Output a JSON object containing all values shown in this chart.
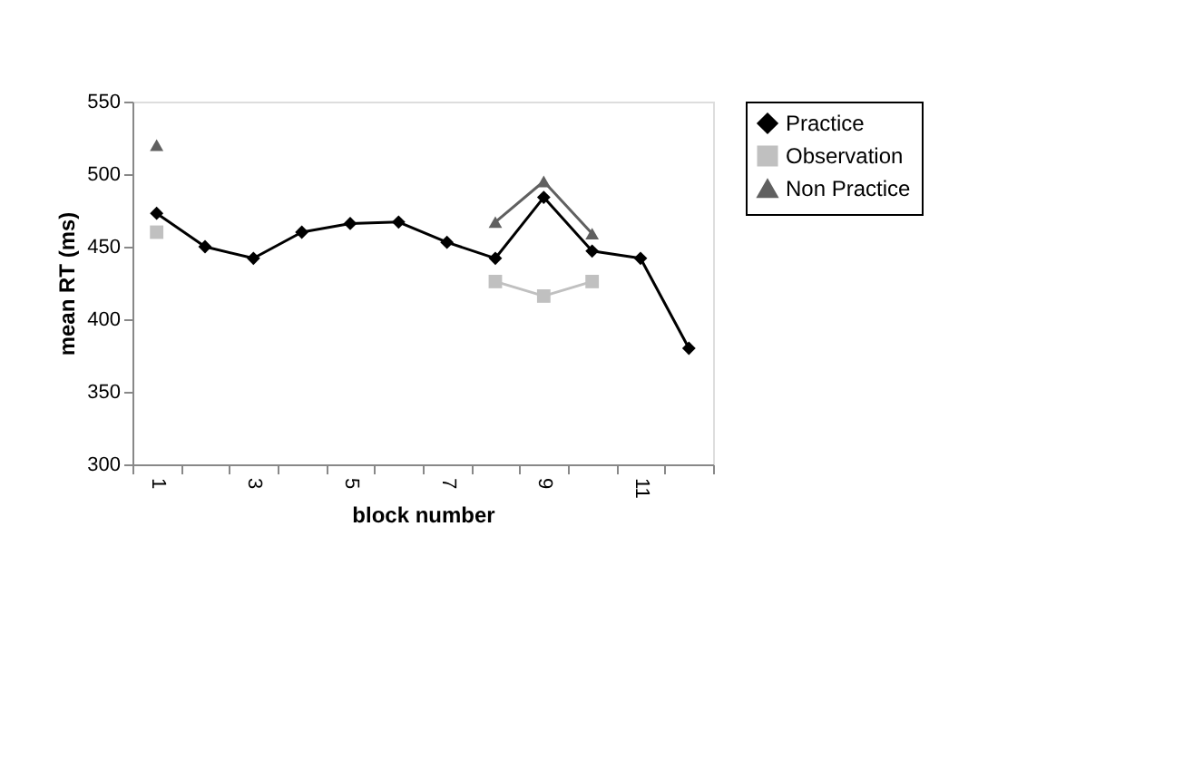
{
  "chart_data": {
    "type": "line",
    "xlabel": "block number",
    "ylabel": "mean RT (ms)",
    "categories": [
      "1",
      null,
      "3",
      null,
      "5",
      null,
      "7",
      null,
      "9",
      null,
      "11",
      null
    ],
    "series": [
      {
        "name": "Practice",
        "color": "#000000",
        "marker": "diamond",
        "values": [
          473,
          450,
          442,
          460,
          466,
          467,
          453,
          442,
          484,
          447,
          442,
          380
        ]
      },
      {
        "name": "Observation",
        "color": "#c0c0c0",
        "marker": "square",
        "values": [
          460,
          null,
          null,
          null,
          null,
          null,
          null,
          426,
          416,
          426,
          null,
          null
        ]
      },
      {
        "name": "Non Practice",
        "color": "#606060",
        "marker": "triangle",
        "values": [
          520,
          null,
          null,
          null,
          null,
          null,
          null,
          467,
          495,
          459,
          null,
          null
        ]
      }
    ],
    "ylim": [
      300,
      550
    ],
    "yticks": [
      300,
      350,
      400,
      450,
      500,
      550
    ],
    "grid": false,
    "legend": "right",
    "line_style": "solid"
  }
}
